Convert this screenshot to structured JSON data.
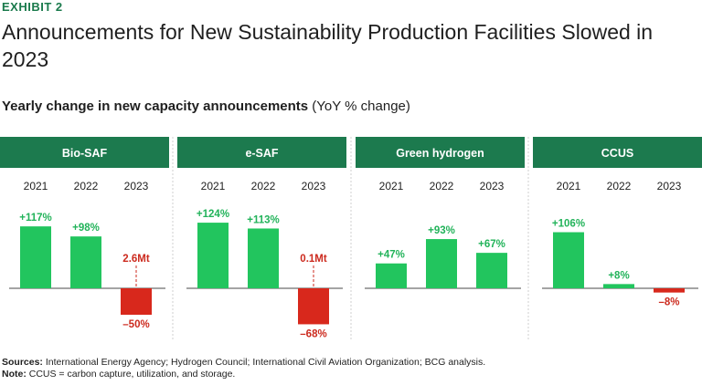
{
  "exhibit": "EXHIBIT 2",
  "title": "Announcements for New Sustainability Production Facilities Slowed in 2023",
  "subtitle_bold": "Yearly change in new capacity announcements",
  "subtitle_plain": "(YoY % change)",
  "sources_label": "Sources:",
  "sources_text": "International Energy Agency; Hydrogen Council; International Civil Aviation Organization; BCG analysis.",
  "note_label": "Note:",
  "note_text": "CCUS = carbon capture, utilization, and storage.",
  "colors": {
    "positive": "#22c55e",
    "negative": "#d8281c",
    "header": "#1c7a4e"
  },
  "chart_data": [
    {
      "type": "bar",
      "title": "Bio-SAF",
      "categories": [
        "2021",
        "2022",
        "2023"
      ],
      "values": [
        117,
        98,
        -50
      ],
      "labels": [
        "+117%",
        "+98%",
        "–50%"
      ],
      "annotation": {
        "index": 2,
        "text": "2.6Mt"
      }
    },
    {
      "type": "bar",
      "title": "e-SAF",
      "categories": [
        "2021",
        "2022",
        "2023"
      ],
      "values": [
        124,
        113,
        -68
      ],
      "labels": [
        "+124%",
        "+113%",
        "–68%"
      ],
      "annotation": {
        "index": 2,
        "text": "0.1Mt"
      }
    },
    {
      "type": "bar",
      "title": "Green hydrogen",
      "categories": [
        "2021",
        "2022",
        "2023"
      ],
      "values": [
        47,
        93,
        67
      ],
      "labels": [
        "+47%",
        "+93%",
        "+67%"
      ]
    },
    {
      "type": "bar",
      "title": "CCUS",
      "categories": [
        "2021",
        "2022",
        "2023"
      ],
      "values": [
        106,
        8,
        -8
      ],
      "labels": [
        "+106%",
        "+8%",
        "–8%"
      ]
    }
  ]
}
